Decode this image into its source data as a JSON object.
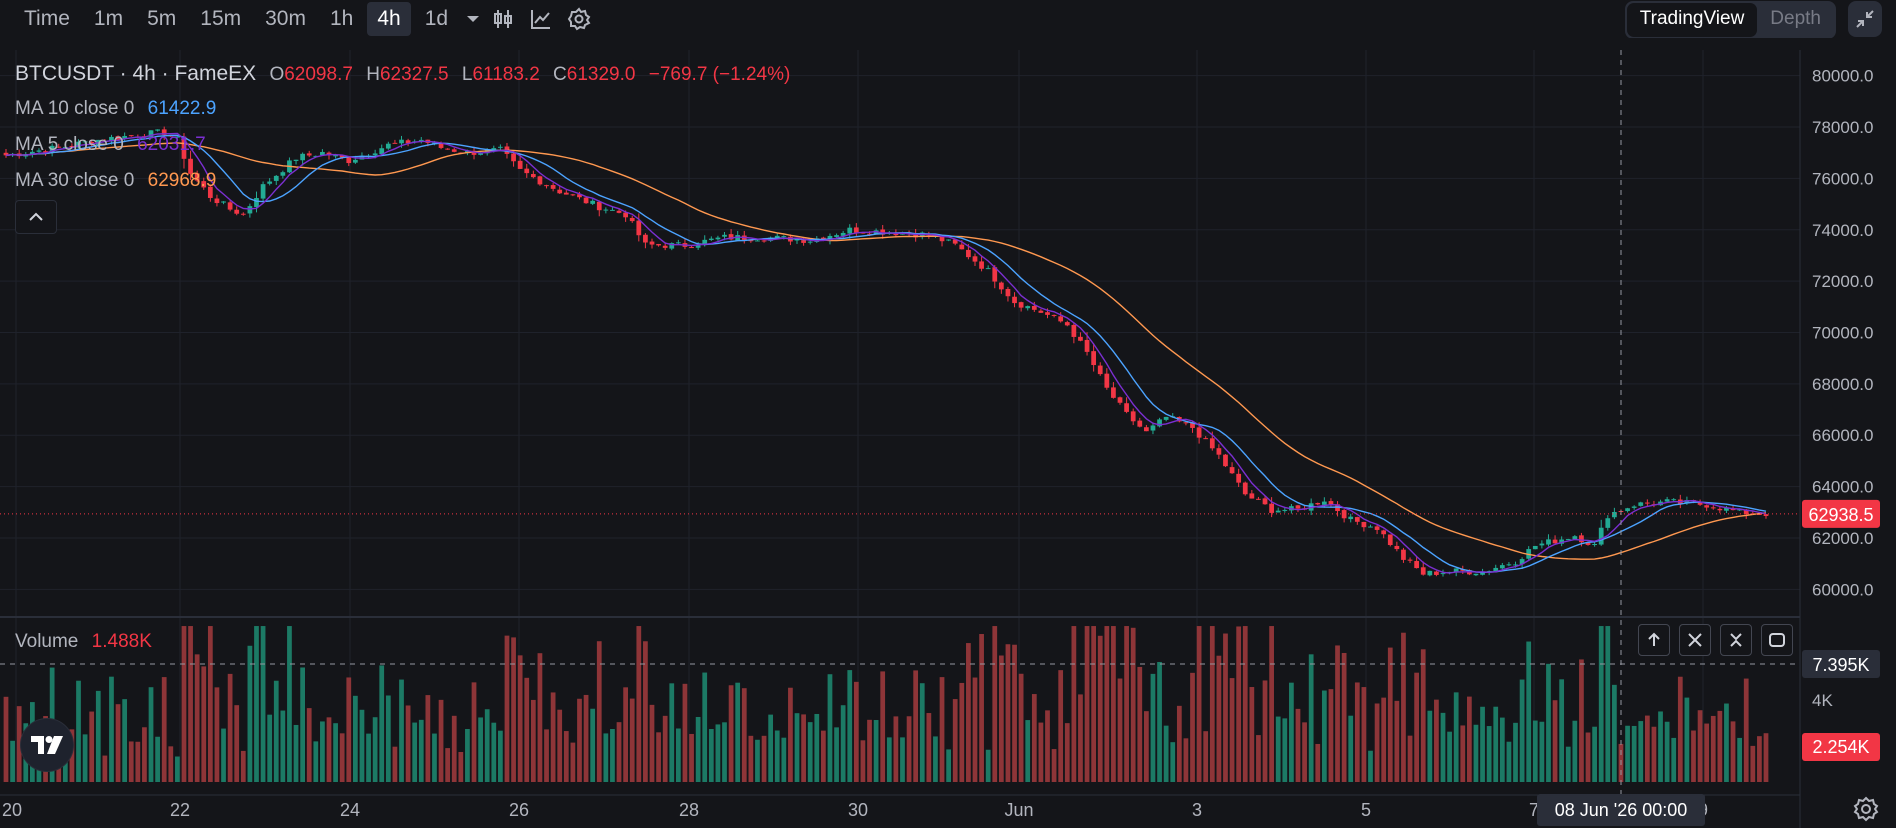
{
  "toolbar": {
    "timeframes": [
      "Time",
      "1m",
      "5m",
      "15m",
      "30m",
      "1h",
      "4h",
      "1d"
    ],
    "active_timeframe": "4h",
    "switch": [
      "TradingView",
      "Depth"
    ],
    "active_switch": "TradingView"
  },
  "legend": {
    "symbol": "BTCUSDT · 4h · FameEX",
    "o_label": "O",
    "o": "62098.7",
    "h_label": "H",
    "h": "62327.5",
    "l_label": "L",
    "l": "61183.2",
    "c_label": "C",
    "c": "61329.0",
    "change": "−769.7 (−1.24%)",
    "ma10_label": "MA 10 close 0",
    "ma10_value": "61422.9",
    "ma5_label": "MA 5 close 0",
    "ma5_value": "62031.7",
    "ma30_label": "MA 30 close 0",
    "ma30_value": "62968.9",
    "volume_label": "Volume",
    "volume_value": "1.488K"
  },
  "colors": {
    "up": "#22ab94",
    "down": "#f23645",
    "vol_up": "#1c7a65",
    "vol_down": "#8e3538",
    "ma10": "#4ca3ff",
    "ma5": "#7b2fd1",
    "ma30": "#ff9850",
    "grid": "#1f222b",
    "axis_text": "#b2b5be"
  },
  "chart_data": {
    "type": "candlestick",
    "symbol": "BTCUSDT",
    "interval": "4h",
    "exchange": "FameEX",
    "x_ticks": [
      "20",
      "22",
      "24",
      "26",
      "28",
      "30",
      "Jun",
      "3",
      "5",
      "7",
      "9"
    ],
    "y_ticks": [
      "60000.0",
      "62000.0",
      "64000.0",
      "66000.0",
      "68000.0",
      "70000.0",
      "72000.0",
      "74000.0",
      "76000.0",
      "78000.0",
      "80000.0"
    ],
    "ylim": [
      59000,
      81000
    ],
    "last_price": "62938.5",
    "crosshair_time": "08 Jun '26   00:00",
    "crosshair_volume": "7.395K",
    "last_volume": "2.254K",
    "volume_ticks": [
      "4K"
    ],
    "volume_max": 7900,
    "anchors": [
      [
        0,
        76900
      ],
      [
        8,
        77200
      ],
      [
        14,
        77500
      ],
      [
        20,
        77700
      ],
      [
        24,
        77800
      ],
      [
        26,
        77500
      ],
      [
        28,
        76200
      ],
      [
        31,
        75300
      ],
      [
        34,
        74800
      ],
      [
        36,
        74600
      ],
      [
        39,
        75700
      ],
      [
        44,
        76800
      ],
      [
        48,
        77000
      ],
      [
        52,
        76700
      ],
      [
        58,
        77300
      ],
      [
        63,
        77500
      ],
      [
        66,
        77200
      ],
      [
        70,
        77000
      ],
      [
        75,
        77100
      ],
      [
        78,
        76300
      ],
      [
        84,
        75500
      ],
      [
        90,
        74900
      ],
      [
        94,
        74600
      ],
      [
        97,
        73400
      ],
      [
        103,
        73400
      ],
      [
        109,
        73700
      ],
      [
        115,
        73700
      ],
      [
        122,
        73600
      ],
      [
        128,
        74000
      ],
      [
        135,
        73900
      ],
      [
        140,
        73800
      ],
      [
        144,
        73400
      ],
      [
        149,
        72400
      ],
      [
        153,
        71200
      ],
      [
        157,
        70800
      ],
      [
        161,
        70300
      ],
      [
        164,
        69200
      ],
      [
        167,
        67800
      ],
      [
        170,
        66800
      ],
      [
        173,
        66100
      ],
      [
        176,
        66700
      ],
      [
        180,
        66300
      ],
      [
        184,
        65200
      ],
      [
        188,
        63700
      ],
      [
        192,
        63100
      ],
      [
        196,
        63100
      ],
      [
        200,
        63500
      ],
      [
        204,
        62700
      ],
      [
        208,
        62400
      ],
      [
        212,
        61200
      ],
      [
        215,
        60600
      ],
      [
        219,
        60700
      ],
      [
        224,
        60700
      ],
      [
        229,
        61100
      ],
      [
        232,
        61700
      ],
      [
        238,
        62100
      ],
      [
        241,
        61700
      ],
      [
        243,
        62900
      ],
      [
        247,
        63300
      ],
      [
        252,
        63400
      ],
      [
        258,
        63300
      ],
      [
        263,
        63000
      ],
      [
        266,
        62950
      ]
    ],
    "ma30_tail": 62300
  }
}
